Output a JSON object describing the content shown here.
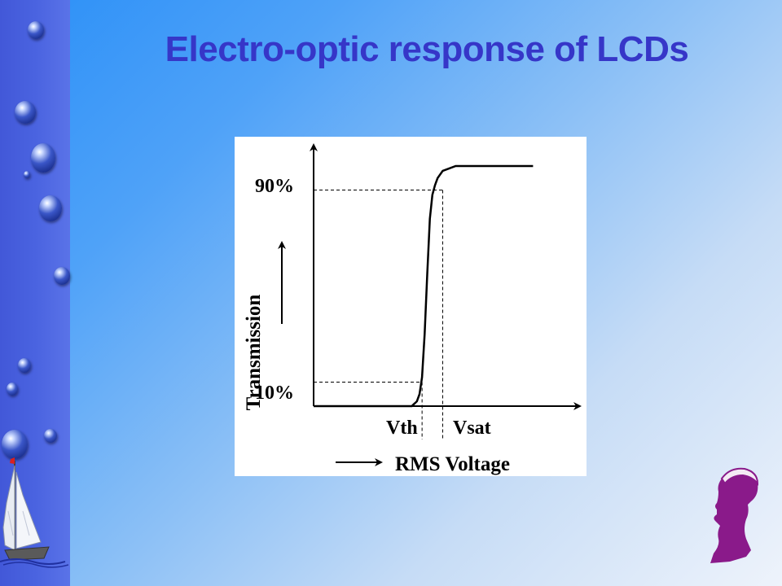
{
  "slide": {
    "title": "Electro-optic response of LCDs",
    "background_accent": "#2a8ff7",
    "sidebar_color": "#4a63e0",
    "title_color": "#3636c8"
  },
  "chart_data": {
    "type": "line",
    "ylabel": "Transmission",
    "xlabel": "RMS Voltage",
    "y_tick_labels": [
      "10%",
      "90%"
    ],
    "x_tick_labels": [
      "Vth",
      "Vsat"
    ],
    "series": [
      {
        "x": [
          0.0,
          0.38,
          0.39,
          0.4,
          0.41,
          0.42,
          0.43,
          0.44,
          0.45,
          0.46,
          0.47,
          0.48,
          0.5,
          0.55,
          0.6,
          0.7,
          0.8,
          0.85
        ],
        "y": [
          0.0,
          0.0,
          0.01,
          0.02,
          0.05,
          0.12,
          0.3,
          0.55,
          0.78,
          0.88,
          0.92,
          0.95,
          0.98,
          1.0,
          1.0,
          1.0,
          1.0,
          1.0
        ]
      }
    ],
    "reference_lines": {
      "low_level": 0.1,
      "high_level": 0.9,
      "vth": 0.42,
      "vsat": 0.5
    },
    "grid": false,
    "legend": "none"
  },
  "decorations": {
    "left_icon": "sailboat-icon",
    "right_icon": "portrait-silhouette-icon",
    "bubbles_icon": "water-bubble-icon"
  }
}
